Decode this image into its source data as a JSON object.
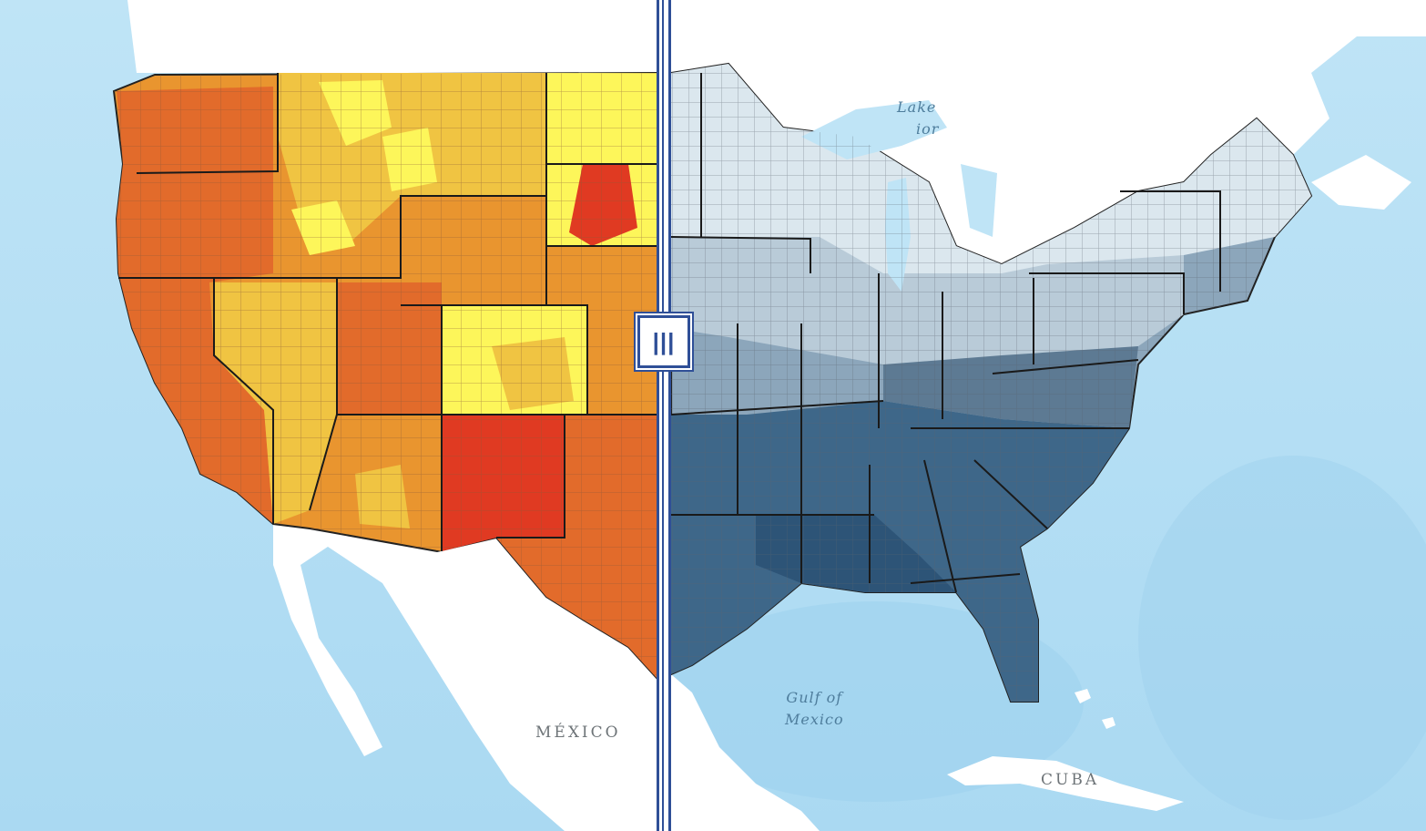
{
  "map": {
    "type": "swipe-comparison",
    "left_layer": {
      "palette": [
        "#fdf65a",
        "#f0c442",
        "#e9952f",
        "#e26b2b",
        "#e03a22"
      ]
    },
    "right_layer": {
      "palette": [
        "#dbe7ee",
        "#b9cbd8",
        "#8ca6bb",
        "#5d7a93",
        "#3e6789",
        "#2d5477"
      ]
    },
    "labels": {
      "mexico": "MÉXICO",
      "cuba": "CUBA",
      "gulf_line1": "Gulf of",
      "gulf_line2": "Mexico",
      "lake_line1": "Lake",
      "lake_line2": "ior"
    }
  },
  "swipe": {
    "handle_glyph": "|||",
    "handle_icon": "swipe-handle-icon",
    "color": "#2f4f97"
  }
}
